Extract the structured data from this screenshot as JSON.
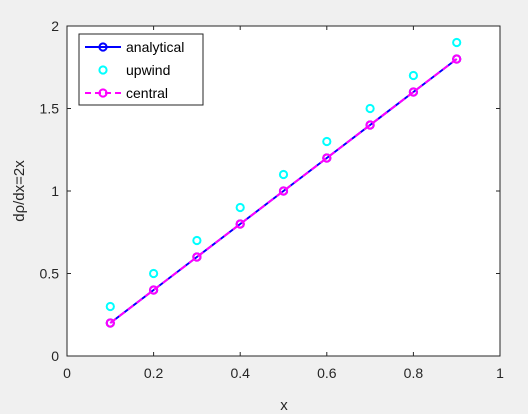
{
  "chart_data": {
    "type": "line",
    "title": "",
    "xlabel": "x",
    "ylabel": "dρ/dx=2x",
    "xlim": [
      0,
      1
    ],
    "ylim": [
      0,
      2
    ],
    "xticks": [
      0,
      0.2,
      0.4,
      0.6,
      0.8,
      1
    ],
    "xtick_labels": [
      "0",
      "0.2",
      "0.4",
      "0.6",
      "0.8",
      "1"
    ],
    "yticks": [
      0,
      0.5,
      1,
      1.5,
      2
    ],
    "ytick_labels": [
      "0",
      "0.5",
      "1",
      "1.5",
      "2"
    ],
    "grid": false,
    "legend_position": "top-left",
    "x": [
      0.1,
      0.2,
      0.3,
      0.4,
      0.5,
      0.6,
      0.7,
      0.8,
      0.9
    ],
    "series": [
      {
        "name": "analytical",
        "values": [
          0.2,
          0.4,
          0.6,
          0.8,
          1.0,
          1.2,
          1.4,
          1.6,
          1.8
        ],
        "color": "#0000ff",
        "line": "solid",
        "marker": "circle"
      },
      {
        "name": "upwind",
        "values": [
          0.3,
          0.5,
          0.7,
          0.9,
          1.1,
          1.3,
          1.5,
          1.7,
          1.9
        ],
        "color": "#00ffff",
        "line": "none",
        "marker": "circle"
      },
      {
        "name": "central",
        "values": [
          0.2,
          0.4,
          0.6,
          0.8,
          1.0,
          1.2,
          1.4,
          1.6,
          1.8
        ],
        "color": "#ff00ff",
        "line": "dashed",
        "marker": "circle"
      }
    ]
  }
}
